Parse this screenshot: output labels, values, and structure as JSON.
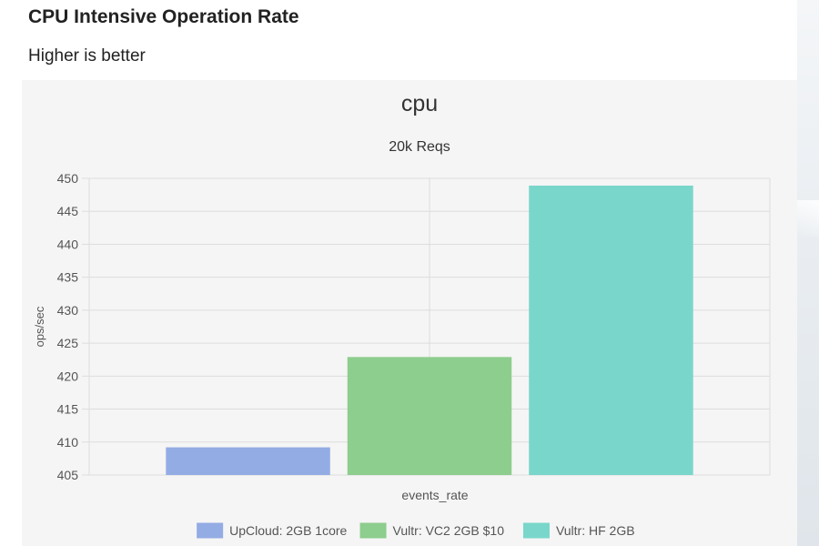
{
  "page": {
    "title": "CPU Intensive Operation Rate",
    "subtitle": "Higher is better"
  },
  "chart_data": {
    "type": "bar",
    "title": "cpu",
    "subtitle": "20k Reqs",
    "categories": [
      "events_rate"
    ],
    "xlabel": "events_rate",
    "ylabel": "ops/sec",
    "ylim": [
      405,
      450
    ],
    "yticks": [
      405,
      410,
      415,
      420,
      425,
      430,
      435,
      440,
      445,
      450
    ],
    "grid": true,
    "legend_position": "bottom",
    "series": [
      {
        "name": "UpCloud: 2GB 1core",
        "values": [
          409.2
        ],
        "color": "#93ace4"
      },
      {
        "name": "Vultr: VC2 2GB $10",
        "values": [
          422.9
        ],
        "color": "#8dcd8d"
      },
      {
        "name": "Vultr: HF 2GB",
        "values": [
          448.9
        ],
        "color": "#79d6cb"
      }
    ]
  }
}
